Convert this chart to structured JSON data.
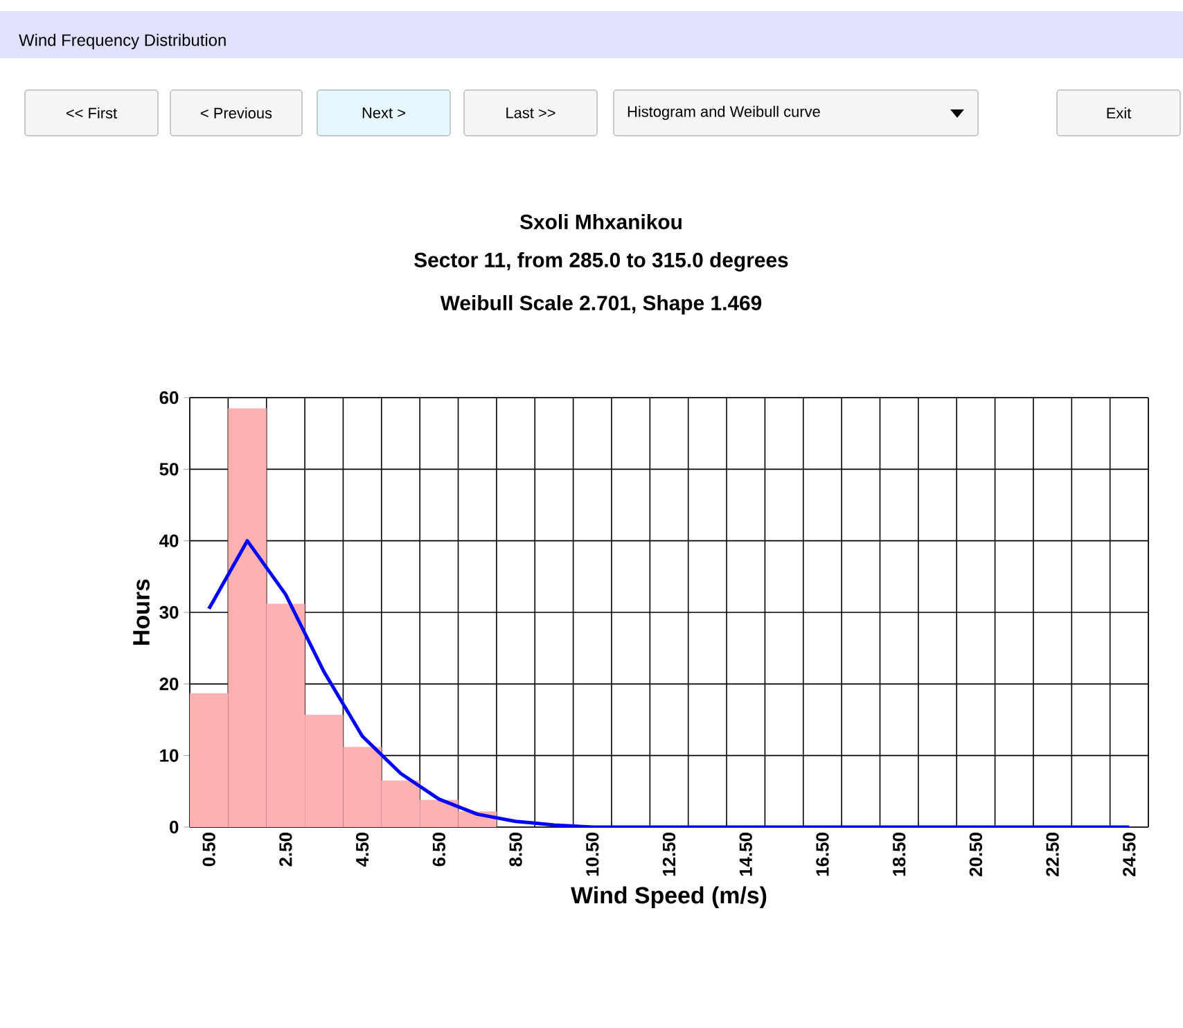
{
  "chart_data": {
    "type": "bar",
    "title": "Sxoli Mhxanikou",
    "subtitle": "Sector 11, from 285.0 to 315.0 degrees",
    "annotations": [
      "Wind Frequency Distribution",
      "<< First",
      "< Previous",
      "Next >",
      "Last >>",
      "Histogram and Weibull curve",
      "Exit",
      "Weibull Scale 2.701, Shape 1.469"
    ],
    "xlabel": "Wind Speed (m/s)",
    "ylabel": "Hours",
    "categories": [
      "0.50",
      null,
      "2.50",
      null,
      "4.50",
      null,
      "6.50",
      null,
      "8.50",
      null,
      "10.50",
      null,
      "12.50",
      null,
      "14.50",
      null,
      "16.50",
      null,
      "18.50",
      null,
      "20.50",
      null,
      "22.50",
      null,
      "24.50"
    ],
    "series": [
      {
        "type": "bar",
        "color": "#ffb0b0",
        "values": [
          18.7,
          58.5,
          31.2,
          15.7,
          11.2,
          6.5,
          3.8,
          2.2,
          0,
          0,
          0,
          0,
          0,
          0,
          0,
          0,
          0,
          0,
          0,
          0,
          0,
          0,
          0,
          0,
          0
        ]
      },
      {
        "type": "line",
        "color": "#0000ff",
        "values": [
          30.5,
          40,
          32.5,
          21.7,
          12.7,
          7.5,
          3.9,
          1.8,
          0.8,
          0.3,
          0,
          0,
          0,
          0,
          0,
          0,
          0,
          0,
          0,
          0,
          0,
          0,
          0,
          0,
          0
        ]
      }
    ],
    "ylim": [
      0,
      60
    ],
    "yticks": [
      0,
      10,
      20,
      30,
      40,
      50,
      60
    ],
    "grid": true,
    "marker": "none",
    "line_style": "solid"
  }
}
